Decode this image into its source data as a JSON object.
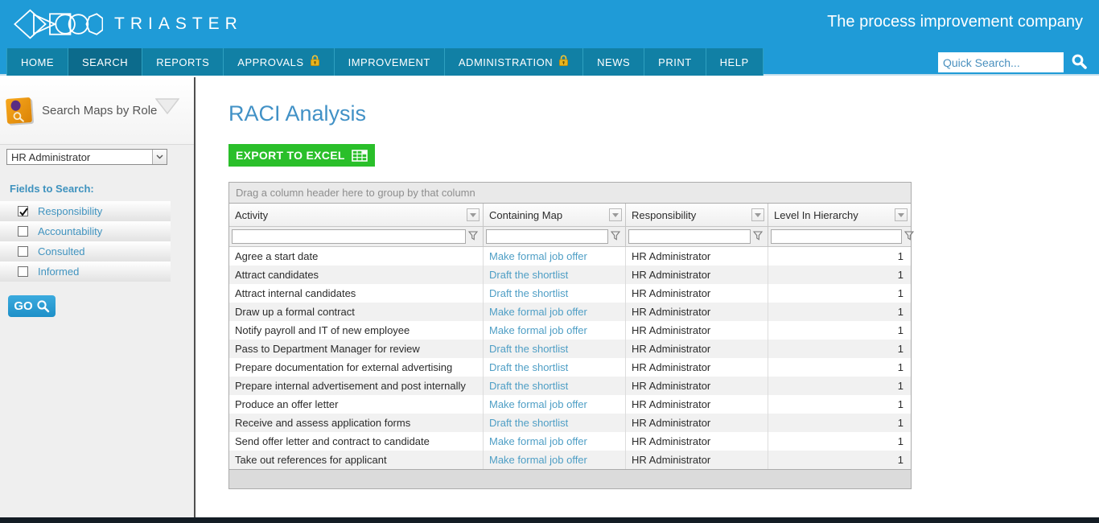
{
  "header": {
    "brand": "TRIASTER",
    "tagline": "The process improvement company",
    "nav": [
      {
        "label": "HOME",
        "locked": false,
        "active": false
      },
      {
        "label": "SEARCH",
        "locked": false,
        "active": true
      },
      {
        "label": "REPORTS",
        "locked": false,
        "active": false
      },
      {
        "label": "APPROVALS",
        "locked": true,
        "active": false
      },
      {
        "label": "IMPROVEMENT",
        "locked": false,
        "active": false
      },
      {
        "label": "ADMINISTRATION",
        "locked": true,
        "active": false
      },
      {
        "label": "NEWS",
        "locked": false,
        "active": false
      },
      {
        "label": "PRINT",
        "locked": false,
        "active": false
      },
      {
        "label": "HELP",
        "locked": false,
        "active": false
      }
    ],
    "quick_search_placeholder": "Quick Search..."
  },
  "sidebar": {
    "title": "Search Maps by Role",
    "role_select_value": "HR Administrator",
    "fields_label": "Fields to Search:",
    "fields": [
      {
        "label": "Responsibility",
        "checked": true
      },
      {
        "label": "Accountability",
        "checked": false
      },
      {
        "label": "Consulted",
        "checked": false
      },
      {
        "label": "Informed",
        "checked": false
      }
    ],
    "go_label": "GO"
  },
  "main": {
    "title": "RACI Analysis",
    "export_label": "EXPORT TO EXCEL",
    "grid": {
      "group_hint": "Drag a column header here to group by that column",
      "columns": [
        "Activity",
        "Containing Map",
        "Responsibility",
        "Level In Hierarchy"
      ],
      "rows": [
        {
          "activity": "Agree a start date",
          "map": "Make formal job offer",
          "responsibility": "HR Administrator",
          "level": "1"
        },
        {
          "activity": "Attract candidates",
          "map": "Draft the shortlist",
          "responsibility": "HR Administrator",
          "level": "1"
        },
        {
          "activity": "Attract internal candidates",
          "map": "Draft the shortlist",
          "responsibility": "HR Administrator",
          "level": "1"
        },
        {
          "activity": "Draw up a formal contract",
          "map": "Make formal job offer",
          "responsibility": "HR Administrator",
          "level": "1"
        },
        {
          "activity": "Notify payroll and IT of new employee",
          "map": "Make formal job offer",
          "responsibility": "HR Administrator",
          "level": "1"
        },
        {
          "activity": "Pass to Department Manager for review",
          "map": "Draft the shortlist",
          "responsibility": "HR Administrator",
          "level": "1"
        },
        {
          "activity": "Prepare documentation for external advertising",
          "map": "Draft the shortlist",
          "responsibility": "HR Administrator",
          "level": "1"
        },
        {
          "activity": "Prepare internal advertisement and post internally",
          "map": "Draft the shortlist",
          "responsibility": "HR Administrator",
          "level": "1"
        },
        {
          "activity": "Produce an offer letter",
          "map": "Make formal job offer",
          "responsibility": "HR Administrator",
          "level": "1"
        },
        {
          "activity": "Receive and assess application forms",
          "map": "Draft the shortlist",
          "responsibility": "HR Administrator",
          "level": "1"
        },
        {
          "activity": "Send offer letter and contract to candidate",
          "map": "Make formal job offer",
          "responsibility": "HR Administrator",
          "level": "1"
        },
        {
          "activity": "Take out references for applicant",
          "map": "Make formal job offer",
          "responsibility": "HR Administrator",
          "level": "1"
        }
      ]
    }
  },
  "colors": {
    "header_blue": "#1F9BD7",
    "nav_teal": "#1180A5",
    "nav_active_teal": "#0C6B8C",
    "lock_gold": "#E8B41F",
    "heading_blue": "#4191C6",
    "export_green": "#2ABF2A",
    "link_blue": "#4E9EC5",
    "sidebar_label_blue": "#3E92BE"
  }
}
